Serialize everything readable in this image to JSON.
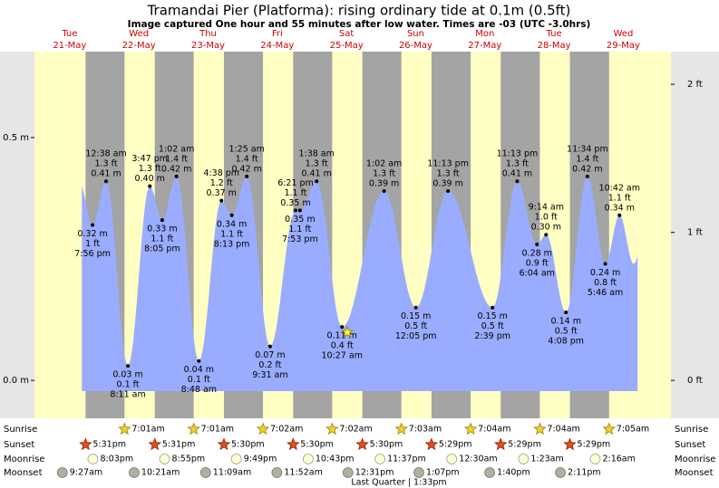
{
  "chart_data": {
    "type": "tide",
    "title": "Tramandai Pier (Platforma): rising  ordinary tide at 0.1m (0.5ft)",
    "subtitle": "Image captured One hour and 55 minutes after low water. Times are -03 (UTC -3.0hrs)",
    "ylim": [
      -0.078,
      0.677
    ],
    "yticks": [
      {
        "value": 0,
        "label": "0.0 m"
      },
      {
        "value": 0.5,
        "label": "0.5 m"
      }
    ],
    "y2lim": [
      -0.256,
      2.221
    ],
    "y2ticks": [
      {
        "value": 0,
        "label": "0 ft"
      },
      {
        "value": 1,
        "label": "1 ft"
      },
      {
        "value": 2,
        "label": "2 ft"
      }
    ],
    "rows": {
      "sunrise": "Sunrise",
      "sunset": "Sunset",
      "moonrise": "Moonrise",
      "moonset": "Moonset"
    },
    "moon_phase": "Last Quarter | 1:33pm",
    "days": [
      {
        "weekday": "Tue",
        "date": "21-May",
        "sunset": "5:31pm",
        "moonrise": "8:03pm",
        "moonset": "9:27am",
        "tides": [
          {
            "time": "7:56 pm",
            "m": 0.32,
            "m_label": "0.32 m",
            "ft_label": "1 ft"
          }
        ]
      },
      {
        "weekday": "Wed",
        "date": "22-May",
        "sunrise": "7:01am",
        "sunset": "5:31pm",
        "moonrise": "8:55pm",
        "moonset": "10:21am",
        "tides": [
          {
            "time": "12:38 am",
            "m": 0.41,
            "m_label": "0.41 m",
            "ft_label": "1.3 ft"
          },
          {
            "time": "8:11 am",
            "m": 0.03,
            "m_label": "0.03 m",
            "ft_label": "0.1 ft"
          },
          {
            "time": "3:47 pm",
            "m": 0.4,
            "m_label": "0.40 m",
            "ft_label": "1.3 ft"
          },
          {
            "time": "8:05 pm",
            "m": 0.33,
            "m_label": "0.33 m",
            "ft_label": "1.1 ft"
          }
        ]
      },
      {
        "weekday": "Thu",
        "date": "23-May",
        "sunrise": "7:01am",
        "sunset": "5:30pm",
        "moonrise": "9:49pm",
        "moonset": "11:09am",
        "tides": [
          {
            "time": "1:02 am",
            "m": 0.42,
            "m_label": "0.42 m",
            "ft_label": "1.4 ft"
          },
          {
            "time": "8:48 am",
            "m": 0.04,
            "m_label": "0.04 m",
            "ft_label": "0.1 ft"
          },
          {
            "time": "4:38 pm",
            "m": 0.37,
            "m_label": "0.37 m",
            "ft_label": "1.2 ft"
          },
          {
            "time": "8:13 pm",
            "m": 0.34,
            "m_label": "0.34 m",
            "ft_label": "1.1 ft"
          }
        ]
      },
      {
        "weekday": "Fri",
        "date": "24-May",
        "sunrise": "7:02am",
        "sunset": "5:30pm",
        "moonrise": "10:43pm",
        "moonset": "11:52am",
        "tides": [
          {
            "time": "1:25 am",
            "m": 0.42,
            "m_label": "0.42 m",
            "ft_label": "1.4 ft"
          },
          {
            "time": "9:31 am",
            "m": 0.07,
            "m_label": "0.07 m",
            "ft_label": "0.2 ft"
          },
          {
            "time": "6:21 pm",
            "m": 0.35,
            "m_label": "0.35 m",
            "ft_label": "1.1 ft"
          },
          {
            "time": "7:53 pm",
            "m": 0.35,
            "m_label": "0.35 m",
            "ft_label": "1.1 ft"
          }
        ]
      },
      {
        "weekday": "Sat",
        "date": "25-May",
        "sunrise": "7:02am",
        "sunset": "5:30pm",
        "moonrise": "11:37pm",
        "moonset": "12:31pm",
        "tides": [
          {
            "time": "1:38 am",
            "m": 0.41,
            "m_label": "0.41 m",
            "ft_label": "1.3 ft"
          },
          {
            "time": "10:27 am",
            "m": 0.11,
            "m_label": "0.11 m",
            "ft_label": "0.4 ft"
          }
        ]
      },
      {
        "weekday": "Sun",
        "date": "26-May",
        "sunrise": "7:03am",
        "sunset": "5:29pm",
        "moonset": "1:07pm",
        "tides": [
          {
            "time": "1:02 am",
            "m": 0.39,
            "m_label": "0.39 m",
            "ft_label": "1.3 ft"
          },
          {
            "time": "12:05 pm",
            "m": 0.15,
            "m_label": "0.15 m",
            "ft_label": "0.5 ft"
          },
          {
            "time": "11:13 pm",
            "m": 0.39,
            "m_label": "0.39 m",
            "ft_label": "1.3 ft"
          }
        ]
      },
      {
        "weekday": "Mon",
        "date": "27-May",
        "sunrise": "7:04am",
        "sunset": "5:29pm",
        "moonrise": "12:30am",
        "moonset": "1:40pm",
        "tides": [
          {
            "time": "2:39 pm",
            "m": 0.15,
            "m_label": "0.15 m",
            "ft_label": "0.5 ft"
          },
          {
            "time": "11:13 pm",
            "m": 0.41,
            "m_label": "0.41 m",
            "ft_label": "1.3 ft"
          }
        ]
      },
      {
        "weekday": "Tue",
        "date": "28-May",
        "sunrise": "7:04am",
        "sunset": "5:29pm",
        "moonrise": "1:23am",
        "moonset": "2:11pm",
        "tides": [
          {
            "time": "6:04 am",
            "m": 0.28,
            "m_label": "0.28 m",
            "ft_label": "0.9 ft"
          },
          {
            "time": "9:14 am",
            "m": 0.3,
            "m_label": "0.30 m",
            "ft_label": "1.0 ft"
          },
          {
            "time": "4:08 pm",
            "m": 0.14,
            "m_label": "0.14 m",
            "ft_label": "0.5 ft"
          },
          {
            "time": "11:34 pm",
            "m": 0.42,
            "m_label": "0.42 m",
            "ft_label": "1.4 ft"
          }
        ]
      },
      {
        "weekday": "Wed",
        "date": "29-May",
        "sunrise": "7:05am",
        "moonrise": "2:16am",
        "tides": [
          {
            "time": "5:46 am",
            "m": 0.24,
            "m_label": "0.24 m",
            "ft_label": "0.8 ft"
          },
          {
            "time": "10:42 am",
            "m": 0.34,
            "m_label": "0.34 m",
            "ft_label": "1.1 ft"
          }
        ]
      }
    ]
  }
}
